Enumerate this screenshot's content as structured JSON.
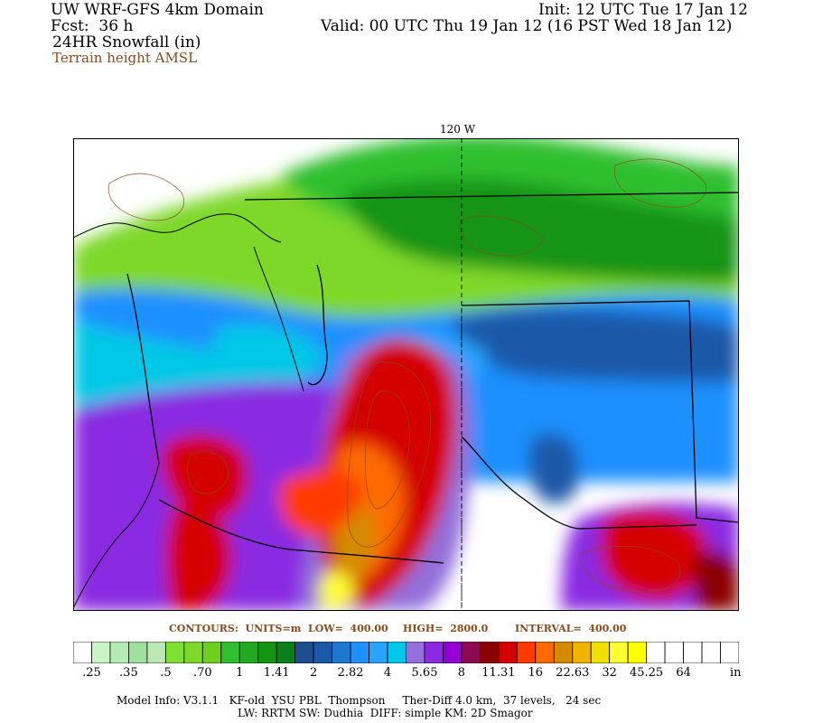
{
  "header": {
    "model_name": "UW WRF-GFS 4km Domain",
    "forecast": "Fcst:  36 h",
    "field": "24HR Snowfall (in)",
    "overlay": "Terrain height AMSL",
    "init": "Init: 12 UTC Tue 17 Jan 12",
    "valid": "Valid: 00 UTC Thu 19 Jan 12 (16 PST Wed 18 Jan 12)"
  },
  "map": {
    "meridian_label": "120 W",
    "region_labels": []
  },
  "contours": {
    "label": "CONTOURS:  UNITS=m  LOW=  400.00",
    "high": "HIGH=  2800.0",
    "interval": "INTERVAL=  400.00"
  },
  "colorbar": {
    "colors": [
      "#ffffff",
      "#c8f5c8",
      "#b4ebb4",
      "#9ee19e",
      "#bde8b6",
      "#7fe033",
      "#7ed82a",
      "#6dd01f",
      "#2fbf2f",
      "#22a822",
      "#139413",
      "#08801a",
      "#1e4c8c",
      "#1a58a8",
      "#1e78d0",
      "#1e90ff",
      "#28a4ff",
      "#00c8e6",
      "#9370db",
      "#8a2be2",
      "#9400d3",
      "#8b0a50",
      "#8b0000",
      "#d40000",
      "#ff3a00",
      "#ff6a00",
      "#d38b00",
      "#f0b400",
      "#f0e000",
      "#ffff30",
      "#ffff00",
      "#ffffff",
      "#ffffff",
      "#ffffff",
      "#ffffff",
      "#ffffff"
    ],
    "ticks": [
      ".25",
      ".35",
      ".5",
      ".70",
      "1",
      "1.41",
      "2",
      "2.82",
      "4",
      "5.65",
      "8",
      "11.31",
      "16",
      "22.63",
      "32",
      "45.25",
      "64"
    ],
    "units": "in"
  },
  "model_info": {
    "line1": "Model Info: V3.1.1   KF-old  YSU PBL  Thompson     Ther-Diff 4.0 km,  37 levels,   24 sec",
    "line2": "LW: RRTM SW: Dudhia  DIFF: simple KM: 2D Smagor"
  }
}
